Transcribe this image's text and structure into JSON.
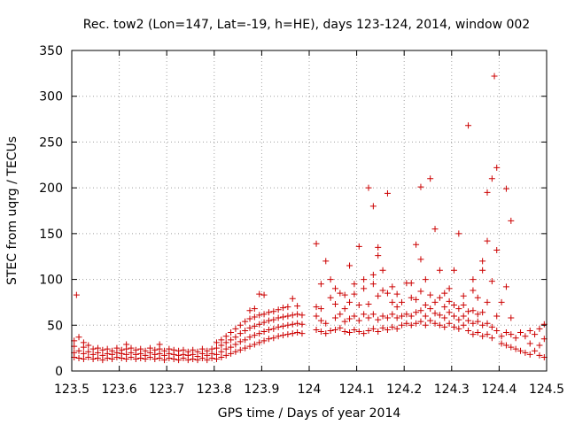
{
  "chart_data": {
    "type": "scatter",
    "title": "Rec. tow2 (Lon=147, Lat=-19, h=HE), days 123-124, 2014, window 002",
    "xlabel": "GPS time / Days of year 2014",
    "ylabel": "STEC from uqrg / TECUs",
    "xlim": [
      123.5,
      124.5
    ],
    "ylim": [
      0,
      350
    ],
    "xticks": [
      123.5,
      123.6,
      123.7,
      123.8,
      123.9,
      124,
      124.1,
      124.2,
      124.3,
      124.4,
      124.5
    ],
    "xtick_labels": [
      "123.5",
      "123.6",
      "123.7",
      "123.8",
      "123.9",
      "124",
      "124.1",
      "124.2",
      "124.3",
      "124.4",
      "124.5"
    ],
    "yticks": [
      0,
      50,
      100,
      150,
      200,
      250,
      300,
      350
    ],
    "ytick_labels": [
      "0",
      "50",
      "100",
      "150",
      "200",
      "250",
      "300",
      "350"
    ],
    "grid": true,
    "marker": "+",
    "color": "#cc0000",
    "points": [
      [
        123.505,
        15
      ],
      [
        123.505,
        20
      ],
      [
        123.505,
        27
      ],
      [
        123.505,
        33
      ],
      [
        123.51,
        83
      ],
      [
        123.515,
        14
      ],
      [
        123.515,
        22
      ],
      [
        123.515,
        37
      ],
      [
        123.525,
        13
      ],
      [
        123.525,
        19
      ],
      [
        123.525,
        26
      ],
      [
        123.525,
        31
      ],
      [
        123.535,
        15
      ],
      [
        123.535,
        21
      ],
      [
        123.535,
        28
      ],
      [
        123.545,
        13
      ],
      [
        123.545,
        18
      ],
      [
        123.545,
        24
      ],
      [
        123.555,
        14
      ],
      [
        123.555,
        20
      ],
      [
        123.555,
        25
      ],
      [
        123.565,
        12
      ],
      [
        123.565,
        17
      ],
      [
        123.565,
        23
      ],
      [
        123.575,
        14
      ],
      [
        123.575,
        19
      ],
      [
        123.575,
        24
      ],
      [
        123.585,
        13
      ],
      [
        123.585,
        18
      ],
      [
        123.585,
        22
      ],
      [
        123.595,
        15
      ],
      [
        123.595,
        20
      ],
      [
        123.595,
        25
      ],
      [
        123.605,
        14
      ],
      [
        123.605,
        19
      ],
      [
        123.605,
        23
      ],
      [
        123.615,
        13
      ],
      [
        123.615,
        18
      ],
      [
        123.615,
        24
      ],
      [
        123.615,
        29
      ],
      [
        123.625,
        15
      ],
      [
        123.625,
        20
      ],
      [
        123.625,
        25
      ],
      [
        123.635,
        13
      ],
      [
        123.635,
        18
      ],
      [
        123.635,
        23
      ],
      [
        123.645,
        14
      ],
      [
        123.645,
        19
      ],
      [
        123.645,
        24
      ],
      [
        123.655,
        13
      ],
      [
        123.655,
        17
      ],
      [
        123.655,
        22
      ],
      [
        123.665,
        15
      ],
      [
        123.665,
        20
      ],
      [
        123.665,
        25
      ],
      [
        123.675,
        13
      ],
      [
        123.675,
        18
      ],
      [
        123.675,
        23
      ],
      [
        123.685,
        14
      ],
      [
        123.685,
        19
      ],
      [
        123.685,
        24
      ],
      [
        123.685,
        29
      ],
      [
        123.695,
        12
      ],
      [
        123.695,
        17
      ],
      [
        123.695,
        22
      ],
      [
        123.705,
        14
      ],
      [
        123.705,
        19
      ],
      [
        123.705,
        24
      ],
      [
        123.715,
        13
      ],
      [
        123.715,
        18
      ],
      [
        123.715,
        23
      ],
      [
        123.725,
        12
      ],
      [
        123.725,
        17
      ],
      [
        123.725,
        22
      ],
      [
        123.735,
        14
      ],
      [
        123.735,
        18
      ],
      [
        123.735,
        23
      ],
      [
        123.745,
        12
      ],
      [
        123.745,
        17
      ],
      [
        123.745,
        21
      ],
      [
        123.755,
        13
      ],
      [
        123.755,
        18
      ],
      [
        123.755,
        23
      ],
      [
        123.765,
        12
      ],
      [
        123.765,
        16
      ],
      [
        123.765,
        21
      ],
      [
        123.775,
        14
      ],
      [
        123.775,
        19
      ],
      [
        123.775,
        24
      ],
      [
        123.785,
        12
      ],
      [
        123.785,
        17
      ],
      [
        123.785,
        22
      ],
      [
        123.795,
        14
      ],
      [
        123.795,
        19
      ],
      [
        123.795,
        24
      ],
      [
        123.805,
        13
      ],
      [
        123.805,
        18
      ],
      [
        123.805,
        25
      ],
      [
        123.805,
        31
      ],
      [
        123.815,
        15
      ],
      [
        123.815,
        21
      ],
      [
        123.815,
        28
      ],
      [
        123.815,
        34
      ],
      [
        123.825,
        17
      ],
      [
        123.825,
        24
      ],
      [
        123.825,
        31
      ],
      [
        123.825,
        38
      ],
      [
        123.835,
        19
      ],
      [
        123.835,
        26
      ],
      [
        123.835,
        34
      ],
      [
        123.835,
        42
      ],
      [
        123.845,
        21
      ],
      [
        123.845,
        29
      ],
      [
        123.845,
        37
      ],
      [
        123.845,
        46
      ],
      [
        123.855,
        23
      ],
      [
        123.855,
        32
      ],
      [
        123.855,
        41
      ],
      [
        123.855,
        50
      ],
      [
        123.865,
        25
      ],
      [
        123.865,
        34
      ],
      [
        123.865,
        44
      ],
      [
        123.865,
        54
      ],
      [
        123.875,
        27
      ],
      [
        123.875,
        37
      ],
      [
        123.875,
        47
      ],
      [
        123.875,
        57
      ],
      [
        123.875,
        66
      ],
      [
        123.885,
        29
      ],
      [
        123.885,
        39
      ],
      [
        123.885,
        49
      ],
      [
        123.885,
        59
      ],
      [
        123.885,
        68
      ],
      [
        123.895,
        31
      ],
      [
        123.895,
        41
      ],
      [
        123.895,
        51
      ],
      [
        123.895,
        61
      ],
      [
        123.895,
        84
      ],
      [
        123.905,
        33
      ],
      [
        123.905,
        43
      ],
      [
        123.905,
        53
      ],
      [
        123.905,
        62
      ],
      [
        123.905,
        83
      ],
      [
        123.915,
        35
      ],
      [
        123.915,
        45
      ],
      [
        123.915,
        55
      ],
      [
        123.915,
        64
      ],
      [
        123.925,
        36
      ],
      [
        123.925,
        46
      ],
      [
        123.925,
        56
      ],
      [
        123.925,
        65
      ],
      [
        123.935,
        38
      ],
      [
        123.935,
        48
      ],
      [
        123.935,
        58
      ],
      [
        123.935,
        67
      ],
      [
        123.945,
        39
      ],
      [
        123.945,
        49
      ],
      [
        123.945,
        59
      ],
      [
        123.945,
        69
      ],
      [
        123.955,
        40
      ],
      [
        123.955,
        50
      ],
      [
        123.955,
        60
      ],
      [
        123.955,
        70
      ],
      [
        123.965,
        41
      ],
      [
        123.965,
        51
      ],
      [
        123.965,
        61
      ],
      [
        123.965,
        79
      ],
      [
        123.975,
        42
      ],
      [
        123.975,
        52
      ],
      [
        123.975,
        62
      ],
      [
        123.975,
        71
      ],
      [
        123.985,
        41
      ],
      [
        123.985,
        51
      ],
      [
        123.985,
        61
      ],
      [
        124.015,
        139
      ],
      [
        124.015,
        70
      ],
      [
        124.015,
        60
      ],
      [
        124.015,
        45
      ],
      [
        124.025,
        43
      ],
      [
        124.025,
        55
      ],
      [
        124.025,
        68
      ],
      [
        124.025,
        95
      ],
      [
        124.035,
        120
      ],
      [
        124.035,
        41
      ],
      [
        124.035,
        52
      ],
      [
        124.045,
        80
      ],
      [
        124.045,
        100
      ],
      [
        124.045,
        44
      ],
      [
        124.055,
        45
      ],
      [
        124.055,
        58
      ],
      [
        124.055,
        73
      ],
      [
        124.055,
        90
      ],
      [
        124.065,
        47
      ],
      [
        124.065,
        62
      ],
      [
        124.065,
        85
      ],
      [
        124.075,
        43
      ],
      [
        124.075,
        54
      ],
      [
        124.075,
        68
      ],
      [
        124.075,
        83
      ],
      [
        124.085,
        115
      ],
      [
        124.085,
        42
      ],
      [
        124.085,
        57
      ],
      [
        124.085,
        75
      ],
      [
        124.095,
        45
      ],
      [
        124.095,
        60
      ],
      [
        124.095,
        84
      ],
      [
        124.095,
        95
      ],
      [
        124.105,
        43
      ],
      [
        124.105,
        55
      ],
      [
        124.105,
        72
      ],
      [
        124.105,
        136
      ],
      [
        124.115,
        41
      ],
      [
        124.115,
        62
      ],
      [
        124.115,
        90
      ],
      [
        124.115,
        100
      ],
      [
        124.125,
        200
      ],
      [
        124.125,
        44
      ],
      [
        124.125,
        58
      ],
      [
        124.125,
        73
      ],
      [
        124.135,
        180
      ],
      [
        124.135,
        46
      ],
      [
        124.135,
        62
      ],
      [
        124.135,
        95
      ],
      [
        124.135,
        105
      ],
      [
        124.145,
        43
      ],
      [
        124.145,
        56
      ],
      [
        124.145,
        82
      ],
      [
        124.145,
        126
      ],
      [
        124.145,
        135
      ],
      [
        124.155,
        47
      ],
      [
        124.155,
        60
      ],
      [
        124.155,
        88
      ],
      [
        124.155,
        110
      ],
      [
        124.165,
        194
      ],
      [
        124.165,
        45
      ],
      [
        124.165,
        58
      ],
      [
        124.165,
        85
      ],
      [
        124.175,
        48
      ],
      [
        124.175,
        62
      ],
      [
        124.175,
        75
      ],
      [
        124.175,
        92
      ],
      [
        124.185,
        46
      ],
      [
        124.185,
        58
      ],
      [
        124.185,
        70
      ],
      [
        124.185,
        84
      ],
      [
        124.195,
        50
      ],
      [
        124.195,
        60
      ],
      [
        124.195,
        75
      ],
      [
        124.205,
        52
      ],
      [
        124.205,
        62
      ],
      [
        124.205,
        96
      ],
      [
        124.215,
        50
      ],
      [
        124.215,
        60
      ],
      [
        124.215,
        80
      ],
      [
        124.215,
        96
      ],
      [
        124.225,
        138
      ],
      [
        124.225,
        52
      ],
      [
        124.225,
        64
      ],
      [
        124.225,
        78
      ],
      [
        124.235,
        201
      ],
      [
        124.235,
        54
      ],
      [
        124.235,
        66
      ],
      [
        124.235,
        87
      ],
      [
        124.235,
        122
      ],
      [
        124.245,
        50
      ],
      [
        124.245,
        60
      ],
      [
        124.245,
        72
      ],
      [
        124.245,
        100
      ],
      [
        124.255,
        210
      ],
      [
        124.255,
        55
      ],
      [
        124.255,
        68
      ],
      [
        124.255,
        83
      ],
      [
        124.265,
        155
      ],
      [
        124.265,
        52
      ],
      [
        124.265,
        63
      ],
      [
        124.265,
        75
      ],
      [
        124.275,
        110
      ],
      [
        124.275,
        50
      ],
      [
        124.275,
        61
      ],
      [
        124.275,
        80
      ],
      [
        124.285,
        48
      ],
      [
        124.285,
        58
      ],
      [
        124.285,
        70
      ],
      [
        124.285,
        85
      ],
      [
        124.295,
        52
      ],
      [
        124.295,
        64
      ],
      [
        124.295,
        76
      ],
      [
        124.295,
        90
      ],
      [
        124.305,
        110
      ],
      [
        124.305,
        48
      ],
      [
        124.305,
        60
      ],
      [
        124.305,
        72
      ],
      [
        124.315,
        150
      ],
      [
        124.315,
        46
      ],
      [
        124.315,
        56
      ],
      [
        124.315,
        68
      ],
      [
        124.325,
        50
      ],
      [
        124.325,
        60
      ],
      [
        124.325,
        72
      ],
      [
        124.325,
        82
      ],
      [
        124.335,
        268
      ],
      [
        124.335,
        44
      ],
      [
        124.335,
        55
      ],
      [
        124.335,
        65
      ],
      [
        124.345,
        100
      ],
      [
        124.345,
        40
      ],
      [
        124.345,
        52
      ],
      [
        124.345,
        66
      ],
      [
        124.345,
        88
      ],
      [
        124.355,
        42
      ],
      [
        124.355,
        54
      ],
      [
        124.355,
        62
      ],
      [
        124.355,
        80
      ],
      [
        124.365,
        120
      ],
      [
        124.365,
        38
      ],
      [
        124.365,
        50
      ],
      [
        124.365,
        64
      ],
      [
        124.365,
        110
      ],
      [
        124.375,
        142
      ],
      [
        124.375,
        195
      ],
      [
        124.375,
        40
      ],
      [
        124.375,
        52
      ],
      [
        124.375,
        75
      ],
      [
        124.385,
        210
      ],
      [
        124.385,
        36
      ],
      [
        124.385,
        48
      ],
      [
        124.385,
        98
      ],
      [
        124.39,
        322
      ],
      [
        124.395,
        222
      ],
      [
        124.395,
        132
      ],
      [
        124.395,
        60
      ],
      [
        124.395,
        44
      ],
      [
        124.405,
        75
      ],
      [
        124.405,
        38
      ],
      [
        124.405,
        30
      ],
      [
        124.415,
        199
      ],
      [
        124.415,
        92
      ],
      [
        124.415,
        42
      ],
      [
        124.415,
        28
      ],
      [
        124.425,
        164
      ],
      [
        124.425,
        40
      ],
      [
        124.425,
        26
      ],
      [
        124.425,
        58
      ],
      [
        124.435,
        36
      ],
      [
        124.435,
        24
      ],
      [
        124.445,
        42
      ],
      [
        124.445,
        22
      ],
      [
        124.455,
        38
      ],
      [
        124.455,
        20
      ],
      [
        124.465,
        44
      ],
      [
        124.465,
        18
      ],
      [
        124.465,
        30
      ],
      [
        124.475,
        40
      ],
      [
        124.475,
        22
      ],
      [
        124.485,
        46
      ],
      [
        124.485,
        17
      ],
      [
        124.485,
        28
      ],
      [
        124.495,
        51
      ],
      [
        124.495,
        15
      ],
      [
        124.495,
        35
      ]
    ]
  }
}
